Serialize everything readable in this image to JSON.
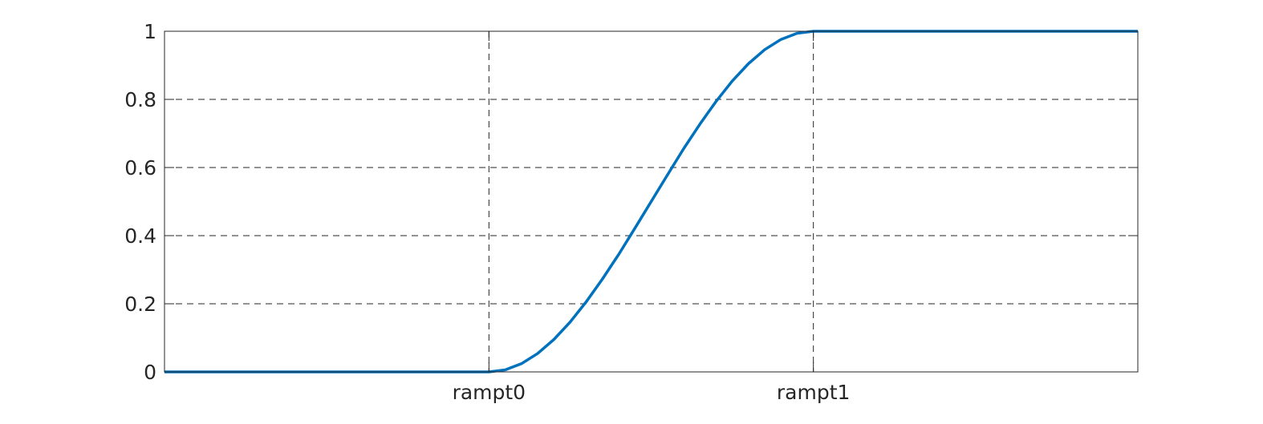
{
  "chart_data": {
    "type": "line",
    "title": "",
    "xlabel": "",
    "ylabel": "",
    "xlim": [
      0,
      3
    ],
    "ylim": [
      0,
      1
    ],
    "x_ticks": [
      {
        "value": 1,
        "label": "rampt0"
      },
      {
        "value": 2,
        "label": "rampt1"
      }
    ],
    "y_ticks": [
      {
        "value": 0,
        "label": "0"
      },
      {
        "value": 0.2,
        "label": "0.2"
      },
      {
        "value": 0.4,
        "label": "0.4"
      },
      {
        "value": 0.6,
        "label": "0.6"
      },
      {
        "value": 0.8,
        "label": "0.8"
      },
      {
        "value": 1,
        "label": "1"
      }
    ],
    "grid": true,
    "grid_style": "dashed",
    "series": [
      {
        "color": "#0072BD",
        "x": [
          0,
          1,
          1.05,
          1.1,
          1.15,
          1.2,
          1.25,
          1.3,
          1.35,
          1.4,
          1.45,
          1.5,
          1.55,
          1.6,
          1.65,
          1.7,
          1.75,
          1.8,
          1.85,
          1.9,
          1.95,
          2,
          3
        ],
        "y": [
          0,
          0,
          0.006,
          0.024,
          0.054,
          0.095,
          0.146,
          0.206,
          0.273,
          0.345,
          0.422,
          0.5,
          0.578,
          0.655,
          0.727,
          0.794,
          0.854,
          0.905,
          0.946,
          0.976,
          0.994,
          1,
          1
        ]
      }
    ]
  }
}
